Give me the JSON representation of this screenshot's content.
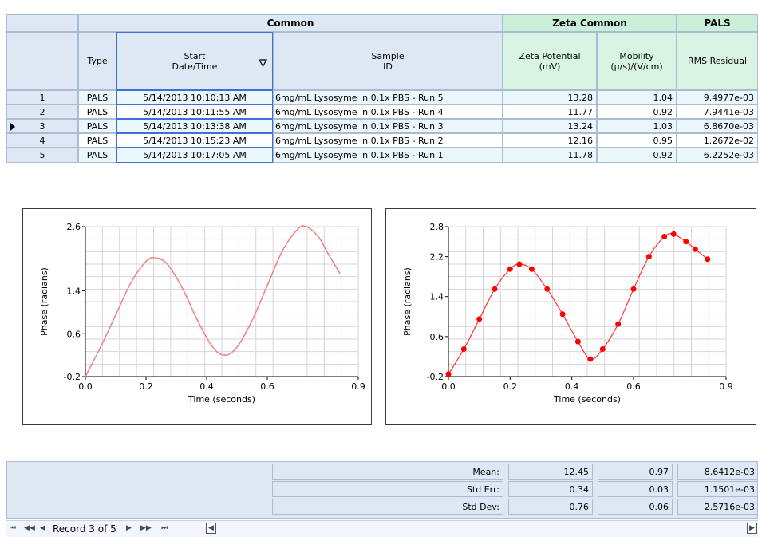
{
  "grid": {
    "groups": {
      "common": "Common",
      "zeta_common": "Zeta Common",
      "pals": "PALS"
    },
    "columns": {
      "type": "Type",
      "start_line1": "Start",
      "start_line2": "Date/Time",
      "sample_line1": "Sample",
      "sample_line2": "ID",
      "zeta_line1": "Zeta Potential",
      "zeta_line2": "(mV)",
      "mob_line1": "Mobility",
      "mob_line2": "(µ/s)/(V/cm)",
      "rms": "RMS Residual"
    },
    "rows": [
      {
        "num": "1",
        "type": "PALS",
        "datetime": "5/14/2013 10:10:13 AM",
        "sample": "6mg/mL Lysosyme in 0.1x PBS - Run 5",
        "zeta": "13.28",
        "mobility": "1.04",
        "rms": "9.4977e-03"
      },
      {
        "num": "2",
        "type": "PALS",
        "datetime": "5/14/2013 10:11:55 AM",
        "sample": "6mg/mL Lysosyme in 0.1x PBS - Run 4",
        "zeta": "11.77",
        "mobility": "0.92",
        "rms": "7.9441e-03"
      },
      {
        "num": "3",
        "type": "PALS",
        "datetime": "5/14/2013 10:13:38 AM",
        "sample": "6mg/mL Lysosyme in 0.1x PBS - Run 3",
        "zeta": "13.24",
        "mobility": "1.03",
        "rms": "6.8670e-03"
      },
      {
        "num": "4",
        "type": "PALS",
        "datetime": "5/14/2013 10:15:23 AM",
        "sample": "6mg/mL Lysosyme in 0.1x PBS - Run 2",
        "zeta": "12.16",
        "mobility": "0.95",
        "rms": "1.2672e-02"
      },
      {
        "num": "5",
        "type": "PALS",
        "datetime": "5/14/2013 10:17:05 AM",
        "sample": "6mg/mL Lysosyme in 0.1x PBS - Run 1",
        "zeta": "11.78",
        "mobility": "0.92",
        "rms": "6.2252e-03"
      }
    ],
    "selected_row": 3,
    "sort_icon": "sort-descending-icon",
    "row_pointer_icon": "current-row-pointer-icon"
  },
  "charts": [
    {
      "name": "phase-fit-chart",
      "ylabel": "Phase (radians)",
      "xlabel": "Time (seconds)",
      "xticks": [
        "0.0",
        "0.2",
        "0.4",
        "0.6",
        "0.9"
      ],
      "yticks": [
        "-0.2",
        "0.6",
        "1.4",
        "2.6"
      ],
      "line_color": "#f08080"
    },
    {
      "name": "phase-data-chart",
      "ylabel": "Phase (radians)",
      "xlabel": "Time (seconds)",
      "xticks": [
        "0.0",
        "0.2",
        "0.4",
        "0.6",
        "0.9"
      ],
      "yticks": [
        "-0.2",
        "0.6",
        "1.4",
        "2.2",
        "2.8"
      ],
      "point_color": "#ff0000"
    }
  ],
  "chart_data": [
    {
      "type": "line",
      "xlabel": "Time (seconds)",
      "ylabel": "Phase (radians)",
      "xlim": [
        0,
        0.9
      ],
      "ylim": [
        -0.2,
        2.6
      ],
      "series": [
        {
          "x": [
            0.0,
            0.05,
            0.1,
            0.15,
            0.2,
            0.23,
            0.27,
            0.32,
            0.37,
            0.42,
            0.46,
            0.5,
            0.55,
            0.6,
            0.65,
            0.7,
            0.73,
            0.77,
            0.8,
            0.84
          ],
          "y": [
            -0.2,
            0.35,
            0.95,
            1.55,
            1.95,
            2.02,
            1.9,
            1.45,
            0.85,
            0.35,
            0.2,
            0.35,
            0.85,
            1.5,
            2.15,
            2.55,
            2.6,
            2.4,
            2.1,
            1.72
          ]
        }
      ]
    },
    {
      "type": "scatter",
      "xlabel": "Time (seconds)",
      "ylabel": "Phase (radians)",
      "xlim": [
        0,
        0.9
      ],
      "ylim": [
        -0.2,
        2.8
      ],
      "series": [
        {
          "x": [
            0.0,
            0.05,
            0.1,
            0.15,
            0.2,
            0.23,
            0.27,
            0.32,
            0.37,
            0.42,
            0.46,
            0.5,
            0.55,
            0.6,
            0.65,
            0.7,
            0.73,
            0.77,
            0.8,
            0.84
          ],
          "y": [
            -0.15,
            0.35,
            0.95,
            1.55,
            1.95,
            2.05,
            1.95,
            1.55,
            1.05,
            0.5,
            0.15,
            0.35,
            0.85,
            1.55,
            2.2,
            2.6,
            2.65,
            2.5,
            2.35,
            2.15
          ]
        }
      ]
    }
  ],
  "stats": {
    "labels": [
      "Mean:",
      "Std Err:",
      "Std Dev:"
    ],
    "zeta": [
      "12.45",
      "0.34",
      "0.76"
    ],
    "mobility": [
      "0.97",
      "0.03",
      "0.06"
    ],
    "rms": [
      "8.6412e-03",
      "1.1501e-03",
      "2.5716e-03"
    ]
  },
  "navigator": {
    "first": "⏮",
    "prev_page": "◀◀",
    "prev": "◀",
    "record_text": "Record 3 of 5",
    "next": "▶",
    "next_page": "▶▶",
    "last": "⏭",
    "scroll_left": "◀",
    "scroll_right": "▶"
  }
}
